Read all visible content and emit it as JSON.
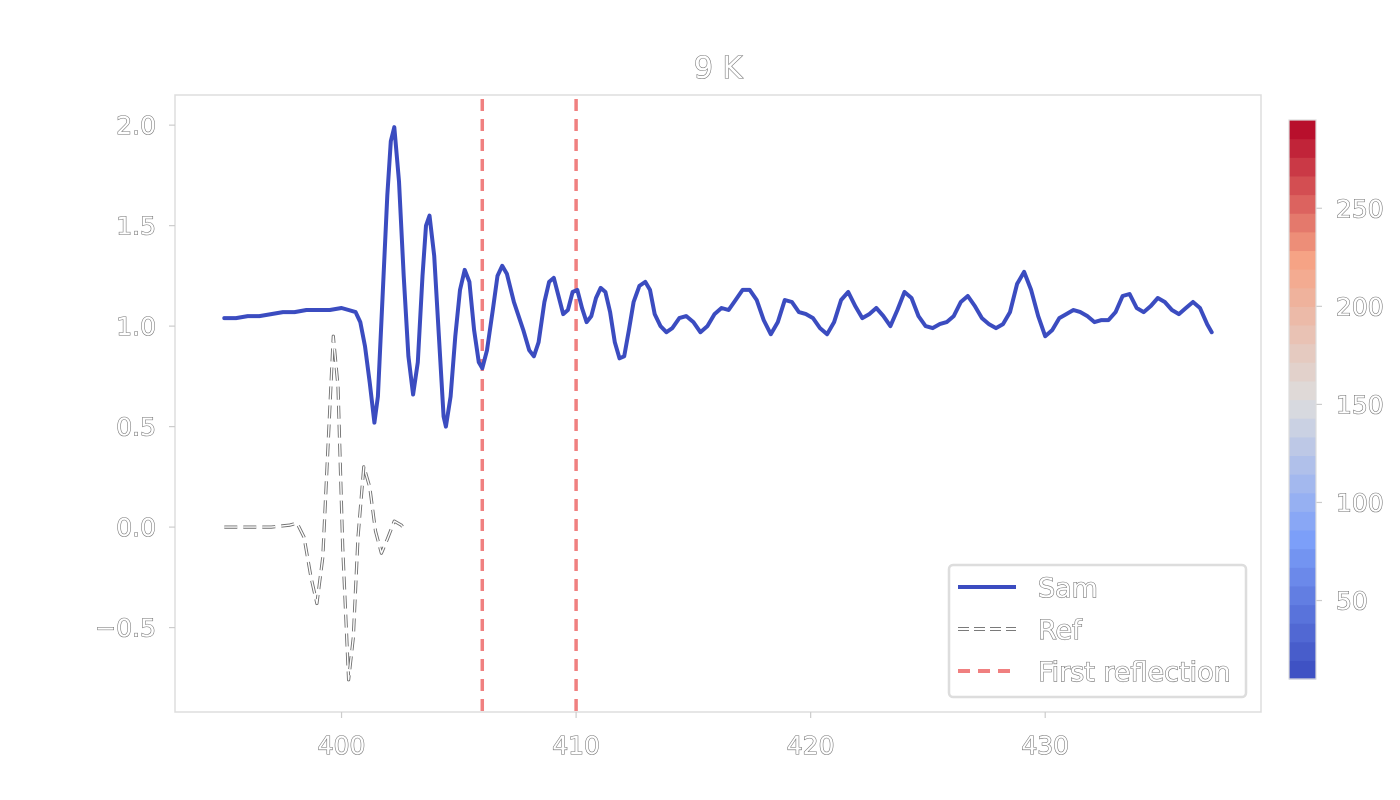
{
  "chart_data": {
    "type": "line",
    "title": "9 K",
    "xlim": [
      392.9,
      439.2
    ],
    "ylim": [
      -0.92,
      2.15
    ],
    "x_ticks": [
      400,
      410,
      420,
      430
    ],
    "y_ticks": [
      -0.5,
      0.0,
      0.5,
      1.0,
      1.5,
      2.0
    ],
    "x_tick_labels": [
      "400",
      "410",
      "420",
      "430"
    ],
    "y_tick_labels": [
      "−0.5",
      "0.0",
      "0.5",
      "1.0",
      "1.5",
      "2.0"
    ],
    "grid": false,
    "legend_position": "lower right",
    "series": [
      {
        "name": "Sam",
        "style": "solid",
        "color": "#3b4cc0",
        "points": [
          [
            395.0,
            1.04
          ],
          [
            395.5,
            1.04
          ],
          [
            396.0,
            1.05
          ],
          [
            396.5,
            1.05
          ],
          [
            397.0,
            1.06
          ],
          [
            397.5,
            1.07
          ],
          [
            398.0,
            1.07
          ],
          [
            398.5,
            1.08
          ],
          [
            399.0,
            1.08
          ],
          [
            399.5,
            1.08
          ],
          [
            400.0,
            1.09
          ],
          [
            400.3,
            1.08
          ],
          [
            400.6,
            1.07
          ],
          [
            400.8,
            1.02
          ],
          [
            401.0,
            0.9
          ],
          [
            401.2,
            0.72
          ],
          [
            401.4,
            0.52
          ],
          [
            401.55,
            0.65
          ],
          [
            401.75,
            1.15
          ],
          [
            401.95,
            1.65
          ],
          [
            402.1,
            1.92
          ],
          [
            402.25,
            1.99
          ],
          [
            402.45,
            1.72
          ],
          [
            402.65,
            1.25
          ],
          [
            402.85,
            0.85
          ],
          [
            403.05,
            0.66
          ],
          [
            403.25,
            0.82
          ],
          [
            403.45,
            1.25
          ],
          [
            403.6,
            1.5
          ],
          [
            403.75,
            1.55
          ],
          [
            403.95,
            1.35
          ],
          [
            404.15,
            0.95
          ],
          [
            404.35,
            0.55
          ],
          [
            404.45,
            0.5
          ],
          [
            404.65,
            0.65
          ],
          [
            404.85,
            0.95
          ],
          [
            405.05,
            1.18
          ],
          [
            405.25,
            1.28
          ],
          [
            405.45,
            1.22
          ],
          [
            405.65,
            0.98
          ],
          [
            405.85,
            0.82
          ],
          [
            406.0,
            0.79
          ],
          [
            406.2,
            0.88
          ],
          [
            406.45,
            1.08
          ],
          [
            406.65,
            1.25
          ],
          [
            406.85,
            1.3
          ],
          [
            407.05,
            1.26
          ],
          [
            407.35,
            1.12
          ],
          [
            407.75,
            0.98
          ],
          [
            408.0,
            0.88
          ],
          [
            408.2,
            0.85
          ],
          [
            408.4,
            0.92
          ],
          [
            408.65,
            1.12
          ],
          [
            408.85,
            1.22
          ],
          [
            409.05,
            1.24
          ],
          [
            409.25,
            1.15
          ],
          [
            409.45,
            1.06
          ],
          [
            409.65,
            1.08
          ],
          [
            409.85,
            1.17
          ],
          [
            410.05,
            1.18
          ],
          [
            410.25,
            1.09
          ],
          [
            410.45,
            1.02
          ],
          [
            410.65,
            1.05
          ],
          [
            410.85,
            1.14
          ],
          [
            411.05,
            1.19
          ],
          [
            411.25,
            1.17
          ],
          [
            411.45,
            1.07
          ],
          [
            411.65,
            0.92
          ],
          [
            411.85,
            0.84
          ],
          [
            412.05,
            0.85
          ],
          [
            412.25,
            0.98
          ],
          [
            412.45,
            1.12
          ],
          [
            412.7,
            1.2
          ],
          [
            412.95,
            1.22
          ],
          [
            413.15,
            1.18
          ],
          [
            413.35,
            1.06
          ],
          [
            413.6,
            1.0
          ],
          [
            413.85,
            0.97
          ],
          [
            414.1,
            0.99
          ],
          [
            414.4,
            1.04
          ],
          [
            414.7,
            1.05
          ],
          [
            415.0,
            1.02
          ],
          [
            415.3,
            0.97
          ],
          [
            415.6,
            1.0
          ],
          [
            415.9,
            1.06
          ],
          [
            416.2,
            1.09
          ],
          [
            416.5,
            1.08
          ],
          [
            416.8,
            1.13
          ],
          [
            417.1,
            1.18
          ],
          [
            417.4,
            1.18
          ],
          [
            417.7,
            1.13
          ],
          [
            418.0,
            1.03
          ],
          [
            418.3,
            0.96
          ],
          [
            418.6,
            1.02
          ],
          [
            418.9,
            1.13
          ],
          [
            419.2,
            1.12
          ],
          [
            419.5,
            1.07
          ],
          [
            419.8,
            1.06
          ],
          [
            420.1,
            1.04
          ],
          [
            420.4,
            0.99
          ],
          [
            420.7,
            0.96
          ],
          [
            421.0,
            1.02
          ],
          [
            421.3,
            1.13
          ],
          [
            421.6,
            1.17
          ],
          [
            421.9,
            1.1
          ],
          [
            422.2,
            1.04
          ],
          [
            422.5,
            1.06
          ],
          [
            422.8,
            1.09
          ],
          [
            423.1,
            1.05
          ],
          [
            423.4,
            1.0
          ],
          [
            423.7,
            1.08
          ],
          [
            424.0,
            1.17
          ],
          [
            424.3,
            1.14
          ],
          [
            424.6,
            1.05
          ],
          [
            424.9,
            1.0
          ],
          [
            425.2,
            0.99
          ],
          [
            425.5,
            1.01
          ],
          [
            425.8,
            1.02
          ],
          [
            426.1,
            1.05
          ],
          [
            426.4,
            1.12
          ],
          [
            426.7,
            1.15
          ],
          [
            427.0,
            1.1
          ],
          [
            427.3,
            1.04
          ],
          [
            427.6,
            1.01
          ],
          [
            427.9,
            0.99
          ],
          [
            428.2,
            1.01
          ],
          [
            428.5,
            1.07
          ],
          [
            428.8,
            1.21
          ],
          [
            429.1,
            1.27
          ],
          [
            429.4,
            1.18
          ],
          [
            429.7,
            1.05
          ],
          [
            430.0,
            0.95
          ],
          [
            430.3,
            0.98
          ],
          [
            430.6,
            1.04
          ],
          [
            430.9,
            1.06
          ],
          [
            431.2,
            1.08
          ],
          [
            431.5,
            1.07
          ],
          [
            431.8,
            1.05
          ],
          [
            432.1,
            1.02
          ],
          [
            432.4,
            1.03
          ],
          [
            432.7,
            1.03
          ],
          [
            433.0,
            1.07
          ],
          [
            433.3,
            1.15
          ],
          [
            433.6,
            1.16
          ],
          [
            433.9,
            1.09
          ],
          [
            434.2,
            1.07
          ],
          [
            434.5,
            1.1
          ],
          [
            434.8,
            1.14
          ],
          [
            435.1,
            1.12
          ],
          [
            435.4,
            1.08
          ],
          [
            435.7,
            1.06
          ],
          [
            436.0,
            1.09
          ],
          [
            436.3,
            1.12
          ],
          [
            436.6,
            1.09
          ],
          [
            436.9,
            1.01
          ],
          [
            437.1,
            0.97
          ]
        ]
      },
      {
        "name": "Ref",
        "style": "dashed",
        "color": "#ffffff",
        "points": [
          [
            395.0,
            0.0
          ],
          [
            396.0,
            0.0
          ],
          [
            397.0,
            0.0
          ],
          [
            397.8,
            0.01
          ],
          [
            398.1,
            0.02
          ],
          [
            398.4,
            -0.05
          ],
          [
            398.7,
            -0.25
          ],
          [
            398.95,
            -0.38
          ],
          [
            399.2,
            -0.15
          ],
          [
            399.4,
            0.35
          ],
          [
            399.65,
            0.95
          ],
          [
            399.85,
            0.7
          ],
          [
            400.05,
            -0.1
          ],
          [
            400.3,
            -0.76
          ],
          [
            400.5,
            -0.55
          ],
          [
            400.7,
            -0.05
          ],
          [
            400.95,
            0.3
          ],
          [
            401.2,
            0.2
          ],
          [
            401.45,
            -0.02
          ],
          [
            401.7,
            -0.13
          ],
          [
            401.95,
            -0.06
          ],
          [
            402.25,
            0.03
          ],
          [
            402.55,
            0.01
          ],
          [
            402.75,
            -0.02
          ]
        ]
      }
    ],
    "vertical_lines": {
      "name": "First reflection",
      "style": "dashed",
      "color": "#f08080",
      "x": [
        406.0,
        410.0
      ]
    },
    "colorbar": {
      "range": [
        10,
        295
      ],
      "ticks": [
        50,
        100,
        150,
        200,
        250
      ],
      "tick_labels": [
        "50",
        "100",
        "150",
        "200",
        "250"
      ],
      "colormap": "coolwarm",
      "bands": 30
    }
  }
}
